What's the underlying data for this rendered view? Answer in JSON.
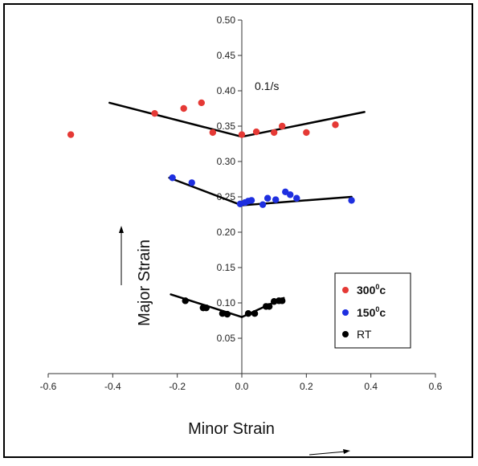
{
  "chart_data": {
    "type": "scatter",
    "annotation": "0.1/s",
    "xlabel": "Minor Strain",
    "ylabel": "Major Strain",
    "xlim": [
      -0.6,
      0.6
    ],
    "ylim": [
      0.0,
      0.5
    ],
    "x_ticks": [
      "-0.6",
      "-0.4",
      "-0.2",
      "0.0",
      "0.2",
      "0.4",
      "0.6"
    ],
    "y_ticks": [
      "0.05",
      "0.10",
      "0.15",
      "0.20",
      "0.25",
      "0.30",
      "0.35",
      "0.40",
      "0.45",
      "0.50"
    ],
    "legend_position": "right",
    "series": [
      {
        "name": "300",
        "name_sup": "0",
        "name_suffix": "c",
        "color": "#e53935",
        "points": [
          [
            -0.53,
            0.338
          ],
          [
            -0.27,
            0.368
          ],
          [
            -0.18,
            0.375
          ],
          [
            -0.125,
            0.383
          ],
          [
            -0.09,
            0.341
          ],
          [
            0.0,
            0.338
          ],
          [
            0.045,
            0.342
          ],
          [
            0.1,
            0.341
          ],
          [
            0.125,
            0.35
          ],
          [
            0.2,
            0.341
          ],
          [
            0.29,
            0.352
          ]
        ],
        "fit_lines": [
          [
            [
              -0.41,
              0.383
            ],
            [
              0.0,
              0.335
            ]
          ],
          [
            [
              0.0,
              0.335
            ],
            [
              0.38,
              0.37
            ]
          ]
        ]
      },
      {
        "name": "150",
        "name_sup": "0",
        "name_suffix": "c",
        "color": "#1e2fe0",
        "points": [
          [
            -0.215,
            0.277
          ],
          [
            -0.155,
            0.27
          ],
          [
            -0.005,
            0.24
          ],
          [
            0.01,
            0.242
          ],
          [
            0.02,
            0.244
          ],
          [
            0.03,
            0.245
          ],
          [
            0.065,
            0.239
          ],
          [
            0.08,
            0.248
          ],
          [
            0.105,
            0.246
          ],
          [
            0.135,
            0.257
          ],
          [
            0.15,
            0.253
          ],
          [
            0.17,
            0.248
          ],
          [
            0.34,
            0.245
          ]
        ],
        "fit_lines": [
          [
            [
              -0.225,
              0.277
            ],
            [
              0.0,
              0.238
            ]
          ],
          [
            [
              0.0,
              0.238
            ],
            [
              0.34,
              0.25
            ]
          ]
        ]
      },
      {
        "name": "RT",
        "color": "#000000",
        "points": [
          [
            -0.175,
            0.103
          ],
          [
            -0.12,
            0.093
          ],
          [
            -0.11,
            0.093
          ],
          [
            -0.06,
            0.085
          ],
          [
            -0.045,
            0.084
          ],
          [
            0.02,
            0.085
          ],
          [
            0.04,
            0.085
          ],
          [
            0.075,
            0.095
          ],
          [
            0.085,
            0.095
          ],
          [
            0.1,
            0.102
          ],
          [
            0.115,
            0.103
          ],
          [
            0.125,
            0.103
          ]
        ],
        "fit_lines": [
          [
            [
              -0.22,
              0.112
            ],
            [
              0.0,
              0.08
            ]
          ],
          [
            [
              0.0,
              0.08
            ],
            [
              0.13,
              0.107
            ]
          ]
        ]
      }
    ]
  }
}
